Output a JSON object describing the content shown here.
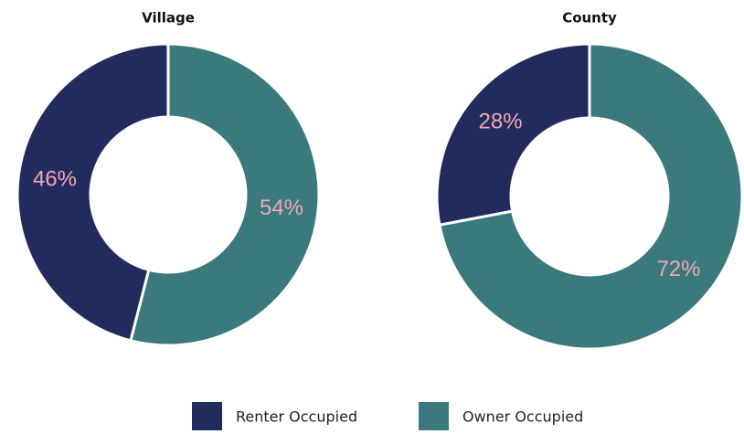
{
  "chart_data": [
    {
      "type": "pie",
      "title": "Village",
      "values": [
        46,
        54
      ],
      "value_labels": [
        "46%",
        "54%"
      ],
      "donut": true
    },
    {
      "type": "pie",
      "title": "County",
      "values": [
        28,
        72
      ],
      "value_labels": [
        "28%",
        "72%"
      ],
      "donut": true
    }
  ],
  "legend": {
    "categories": [
      "Renter Occupied",
      "Owner Occupied"
    ],
    "colors": [
      "#222b5e",
      "#3a7a7c"
    ]
  }
}
